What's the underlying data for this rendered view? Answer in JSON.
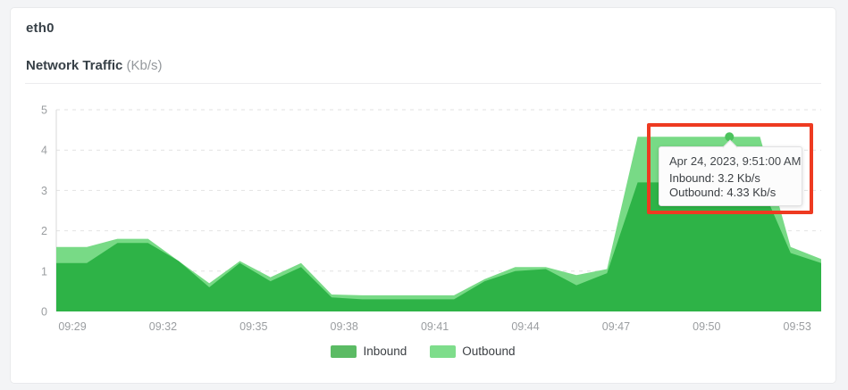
{
  "card": {
    "title": "eth0",
    "chart_title": "Network Traffic",
    "chart_title_unit": "(Kb/s)"
  },
  "colors": {
    "page_background": "#f3f4f6",
    "card_background": "#ffffff",
    "grid": "#e2e2e2",
    "axis_line": "#d9d9d9",
    "axis_text": "#9a9da0",
    "annotation_red": "#ee3a21"
  },
  "chart_data": {
    "type": "area",
    "title": "Network Traffic (Kb/s)",
    "xlabel": "",
    "ylabel": "",
    "ylim": [
      0,
      5
    ],
    "y_ticks": [
      0,
      1,
      2,
      3,
      4,
      5
    ],
    "grid": "horizontal-dashed",
    "legend_position": "bottom-center",
    "x": [
      "09:29",
      "09:30",
      "09:31",
      "09:32",
      "09:33",
      "09:34",
      "09:35",
      "09:36",
      "09:37",
      "09:38",
      "09:39",
      "09:40",
      "09:41",
      "09:42",
      "09:43",
      "09:44",
      "09:45",
      "09:46",
      "09:47",
      "09:48",
      "09:49",
      "09:50",
      "09:51",
      "09:52",
      "09:53",
      "09:54"
    ],
    "x_tick_labels": [
      "09:29",
      "09:32",
      "09:35",
      "09:38",
      "09:41",
      "09:44",
      "09:47",
      "09:50",
      "09:53"
    ],
    "series": [
      {
        "name": "Inbound",
        "color": "#2eb347",
        "legend_color": "#5bbb64",
        "values": [
          1.2,
          1.2,
          1.7,
          1.7,
          1.25,
          0.6,
          1.2,
          0.75,
          1.1,
          0.35,
          0.3,
          0.3,
          0.3,
          0.3,
          0.75,
          1.0,
          1.05,
          0.65,
          0.95,
          3.2,
          3.2,
          3.2,
          3.2,
          3.2,
          1.45,
          1.2
        ]
      },
      {
        "name": "Outbound",
        "color": "#78da86",
        "legend_color": "#7edd8b",
        "values": [
          1.6,
          1.6,
          1.8,
          1.8,
          1.25,
          0.7,
          1.25,
          0.85,
          1.2,
          0.42,
          0.4,
          0.4,
          0.4,
          0.4,
          0.8,
          1.1,
          1.1,
          0.9,
          1.05,
          4.33,
          4.33,
          4.33,
          4.33,
          4.33,
          1.6,
          1.3
        ]
      }
    ]
  },
  "tooltip": {
    "timestamp": "Apr 24, 2023, 9:51:00 AM",
    "lines": [
      "Inbound: 3.2 Kb/s",
      "Outbound: 4.33 Kb/s"
    ],
    "point_time": "09:51",
    "point_index": 22,
    "point_value": 4.33,
    "dot_color": "#4cc35d"
  },
  "annotation": {
    "type": "highlight-box",
    "color": "#ee3a21"
  }
}
